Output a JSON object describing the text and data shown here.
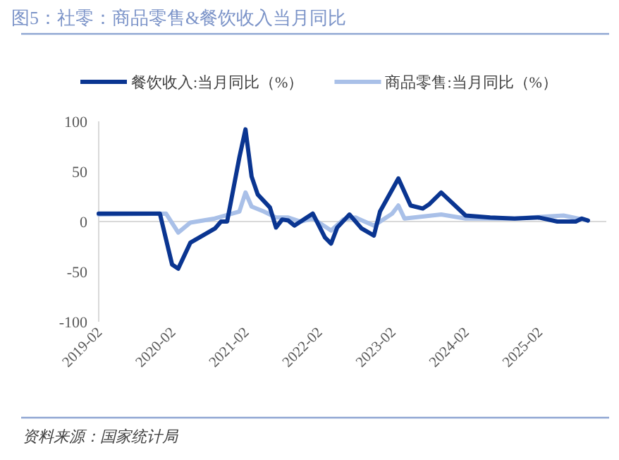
{
  "chart_data": {
    "type": "line",
    "title": "图5：社零：商品零售&餐饮收入当月同比",
    "annotations": [
      "资料来源：国家统计局"
    ],
    "xlim": [
      "2019-02",
      "2026-01"
    ],
    "xticks": [
      "2019-02",
      "2020-02",
      "2021-02",
      "2022-02",
      "2023-02",
      "2024-02",
      "2025-02"
    ],
    "ylim": [
      -100,
      100
    ],
    "yticks": [
      -100,
      -50,
      0,
      50,
      100
    ],
    "grid": false,
    "ref_lines": [
      {
        "axis": "y",
        "value": 0,
        "color": "#d9d9d9"
      }
    ],
    "legend": "top",
    "marker": "none",
    "line_style": "solid",
    "series": [
      {
        "name": "餐饮收入:当月同比（%）",
        "color": "#0a3591",
        "x": [
          "2019-02",
          "2019-12",
          "2020-02",
          "2020-03",
          "2020-05",
          "2020-09",
          "2020-10",
          "2020-11",
          "2021-01",
          "2021-02",
          "2021-03",
          "2021-04",
          "2021-06",
          "2021-07",
          "2021-08",
          "2021-09",
          "2021-10",
          "2022-01",
          "2022-03",
          "2022-04",
          "2022-05",
          "2022-07",
          "2022-09",
          "2022-11",
          "2022-12",
          "2023-03",
          "2023-05",
          "2023-07",
          "2023-08",
          "2023-10",
          "2024-02",
          "2024-06",
          "2024-10",
          "2025-02",
          "2025-05",
          "2025-08",
          "2025-09",
          "2025-10"
        ],
        "values": [
          8,
          8,
          -43,
          -47,
          -21,
          -7,
          0,
          0,
          64,
          92,
          45,
          27,
          14,
          -6,
          2,
          1,
          -4,
          8,
          -16,
          -22,
          -6,
          7,
          -7,
          -14,
          10,
          43,
          16,
          13,
          17,
          29,
          6,
          4,
          3,
          4,
          0,
          0,
          3,
          1
        ]
      },
      {
        "name": "商品零售:当月同比（%）",
        "color": "#a9c0e8",
        "x": [
          "2019-02",
          "2020-01",
          "2020-03",
          "2020-05",
          "2020-09",
          "2021-01",
          "2021-02",
          "2021-03",
          "2021-05",
          "2021-07",
          "2021-09",
          "2021-11",
          "2022-01",
          "2022-04",
          "2022-06",
          "2022-08",
          "2022-11",
          "2023-02",
          "2023-03",
          "2023-04",
          "2023-10",
          "2024-02",
          "2024-10",
          "2025-03",
          "2025-06",
          "2025-10"
        ],
        "values": [
          7,
          8,
          -11,
          -1,
          3,
          10,
          29,
          15,
          10,
          4,
          4,
          0,
          3,
          -9,
          2,
          4,
          -4,
          8,
          16,
          3,
          7,
          3,
          3,
          5,
          6,
          1
        ]
      }
    ]
  }
}
